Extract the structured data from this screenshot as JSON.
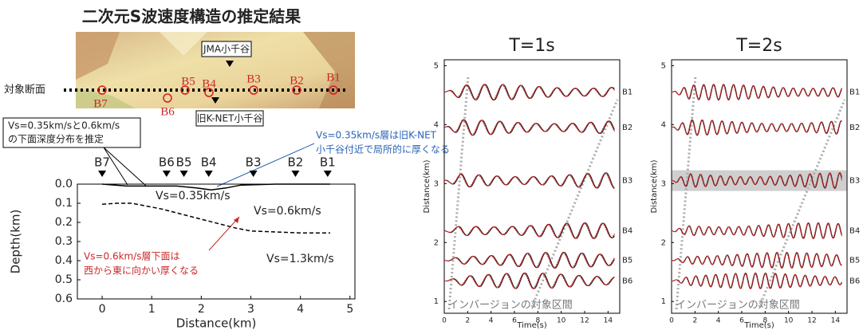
{
  "title": "二次元S波速度構造の推定結果",
  "map": {
    "section_label": "対象断面",
    "jma_label": "JMA小千谷",
    "knet_label": "旧K-NET小千谷",
    "stations": [
      "B1",
      "B2",
      "B3",
      "B4",
      "B5",
      "B6",
      "B7"
    ]
  },
  "callouts": {
    "estimate": [
      "Vs=0.35km/sと0.6km/s",
      "の下面深度分布を推定"
    ],
    "blue_note": [
      "Vs=0.35km/s層は旧K-NET",
      "小千谷付近で局所的に厚くなる"
    ],
    "red_note": [
      "Vs=0.6km/s層下面は",
      "西から東に向かい厚くなる"
    ]
  },
  "chart_data": [
    {
      "type": "line",
      "xlabel": "Distance(km)",
      "ylabel": "Depth(km)",
      "xlim": [
        -0.5,
        5.1
      ],
      "ylim": [
        0,
        0.6
      ],
      "y_inverted": true,
      "xticks": [
        0,
        1,
        2,
        3,
        4,
        5
      ],
      "yticks": [
        {
          "value": 0,
          "label": "0.0"
        },
        {
          "value": 0.1,
          "label": "0.1"
        },
        {
          "value": 0.2,
          "label": "0.2"
        },
        {
          "value": 0.3,
          "label": "0.3"
        },
        {
          "value": 0.4,
          "label": "0.4"
        },
        {
          "value": 0.5,
          "label": "0.5"
        },
        {
          "value": 0.6,
          "label": "0.6"
        }
      ],
      "stations": {
        "names": [
          "B7",
          "B6",
          "B5",
          "B4",
          "B3",
          "B2",
          "B1"
        ],
        "x": [
          0,
          1.3,
          1.65,
          2.15,
          3.05,
          3.9,
          4.55
        ]
      },
      "layer_labels": [
        "Vs=0.35km/s",
        "Vs=0.6km/s",
        "Vs=1.3km/s"
      ],
      "series": [
        {
          "color": "#000000",
          "dash": "solid",
          "x": [
            0,
            0.5,
            1.0,
            1.5,
            1.9,
            2.2,
            2.5,
            2.8,
            3.5,
            4.6
          ],
          "values": [
            0,
            0.01,
            0.01,
            0.01,
            0.02,
            0.03,
            0.02,
            0.005,
            0,
            0
          ]
        },
        {
          "color": "#000000",
          "dash": "dashed",
          "x": [
            0,
            0.3,
            0.6,
            0.9,
            1.2,
            1.5,
            1.8,
            2.1,
            2.4,
            2.7,
            3.0,
            3.5,
            4.0,
            4.6
          ],
          "values": [
            0.105,
            0.1,
            0.1,
            0.115,
            0.13,
            0.15,
            0.17,
            0.19,
            0.21,
            0.23,
            0.245,
            0.25,
            0.255,
            0.255
          ]
        }
      ]
    },
    {
      "type": "waveform",
      "title": "T=1s",
      "xlabel": "Time(s)",
      "ylabel": "Distance(km)",
      "xlim": [
        0,
        15
      ],
      "ylim": [
        0.8,
        5.1
      ],
      "xticks": [
        0,
        2,
        4,
        6,
        8,
        10,
        12,
        14
      ],
      "yticks": [
        1,
        2,
        3,
        4,
        5
      ],
      "traces": {
        "names": [
          "B1",
          "B2",
          "B3",
          "B4",
          "B5",
          "B6"
        ],
        "distance": [
          4.55,
          3.95,
          3.05,
          2.2,
          1.7,
          1.35
        ]
      },
      "annotation": "インバージョンの対象区間"
    },
    {
      "type": "waveform",
      "title": "T=2s",
      "xlabel": "Time(s)",
      "ylabel": "Distance(km)",
      "xlim": [
        0,
        15
      ],
      "ylim": [
        0.8,
        5.1
      ],
      "xticks": [
        0,
        2,
        4,
        6,
        8,
        10,
        12,
        14
      ],
      "yticks": [
        1,
        2,
        3,
        4,
        5
      ],
      "traces": {
        "names": [
          "B1",
          "B2",
          "B3",
          "B4",
          "B5",
          "B6"
        ],
        "distance": [
          4.55,
          3.95,
          3.05,
          2.2,
          1.7,
          1.35
        ]
      },
      "highlight_trace": 2,
      "annotation": "インバージョンの対象区間"
    }
  ]
}
